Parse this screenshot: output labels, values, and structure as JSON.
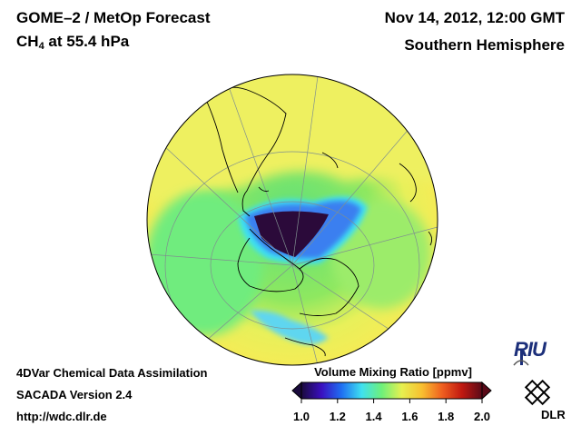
{
  "header": {
    "title_line1": "GOME–2 / MetOp Forecast",
    "species": "CH",
    "species_subscript": "4",
    "pressure_text": " at 55.4 hPa",
    "date": "Nov 14, 2012, 12:00 GMT",
    "region": "Southern Hemisphere"
  },
  "footer": {
    "line1": "4DVar Chemical Data Assimilation",
    "line2": "SACADA Version 2.4",
    "line3": "http://wdc.dlr.de"
  },
  "colorbar": {
    "title": "Volume Mixing Ratio [ppmv]",
    "min": 1.0,
    "max": 2.0,
    "ticks": [
      "1.0",
      "1.2",
      "1.4",
      "1.6",
      "1.8",
      "2.0"
    ],
    "colors": [
      "#1a0a3c",
      "#3a10c0",
      "#1f6ff2",
      "#3fe0f0",
      "#6ef07a",
      "#e6f050",
      "#f8c030",
      "#f06020",
      "#c01810",
      "#5a0a18"
    ]
  },
  "map": {
    "projection": "orthographic",
    "background_value_color": "#eef060",
    "ocean_color": "#6ee870"
  },
  "logos": {
    "riu": "RIU",
    "dlr": "DLR"
  }
}
